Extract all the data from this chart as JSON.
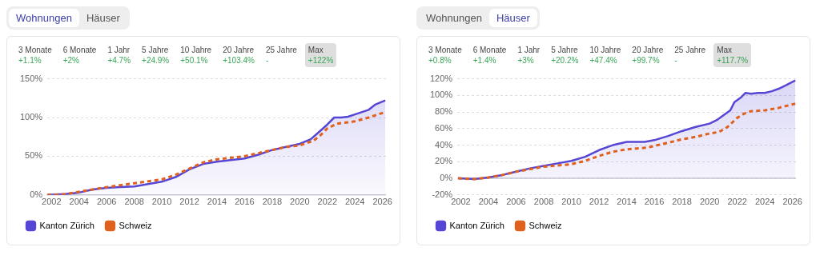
{
  "chart_data": [
    {
      "type": "line",
      "annotations": [
        "Wohnungen",
        "Häuser",
        "3 Monate",
        "+1.1%",
        "6 Monate",
        "+2%",
        "1 Jahr",
        "+4.7%",
        "5 Jahre",
        "+24.9%",
        "10 Jahre",
        "+50.1%",
        "20 Jahre",
        "+103.4%",
        "25 Jahre",
        "-",
        "Max",
        "+122%"
      ],
      "xlim": [
        2001.7,
        2026.25
      ],
      "xticks": [
        2002,
        2004,
        2006,
        2008,
        2010,
        2012,
        2014,
        2016,
        2018,
        2020,
        2022,
        2024,
        2026
      ],
      "ylim": [
        0,
        150
      ],
      "yticks": [
        {
          "value": 0,
          "label": "0%"
        },
        {
          "value": 50,
          "label": "50%"
        },
        {
          "value": 100,
          "label": "100%"
        },
        {
          "value": 150,
          "label": "150%"
        }
      ],
      "grid": "y",
      "legend": "bottom left",
      "marker": "none",
      "series": [
        {
          "name": "Kanton Zürich",
          "type": "area",
          "color": "#5546d6",
          "line_style": "solid",
          "x": [
            2001.7,
            2003,
            2004,
            2005,
            2006,
            2007,
            2008,
            2009,
            2010,
            2011,
            2012,
            2013,
            2014,
            2015,
            2016,
            2017,
            2018,
            2019,
            2020,
            2020.8,
            2021.5,
            2022,
            2022.5,
            2023,
            2023.5,
            2024,
            2025,
            2025.5,
            2026.2
          ],
          "values": [
            0,
            1,
            3,
            7,
            9,
            10,
            11,
            14,
            17,
            23,
            33,
            40,
            43,
            45,
            47,
            52,
            58,
            62,
            66,
            72,
            83,
            91,
            100,
            100,
            101,
            104,
            110,
            117,
            122
          ]
        },
        {
          "name": "Schweiz",
          "type": "line",
          "color": "#e0601e",
          "line_style": "dashed",
          "x": [
            2001.7,
            2003,
            2004,
            2006,
            2008,
            2010,
            2011,
            2012,
            2013,
            2014,
            2016,
            2018,
            2019,
            2020,
            2021,
            2021.5,
            2022,
            2022.7,
            2024,
            2025,
            2026.2
          ],
          "values": [
            0,
            1,
            4,
            10,
            15,
            20,
            26,
            34,
            42,
            46,
            50,
            58,
            62,
            64,
            70,
            77,
            86,
            92,
            95,
            100,
            107
          ]
        }
      ]
    },
    {
      "type": "line",
      "annotations": [
        "Wohnungen",
        "Häuser",
        "3 Monate",
        "+0.8%",
        "6 Monate",
        "+1.4%",
        "1 Jahr",
        "+3%",
        "5 Jahre",
        "+20.2%",
        "10 Jahre",
        "+47.4%",
        "20 Jahre",
        "+99.7%",
        "25 Jahre",
        "-",
        "Max",
        "+117.7%"
      ],
      "xlim": [
        2001.75,
        2026.25
      ],
      "xticks": [
        2002,
        2004,
        2006,
        2008,
        2010,
        2012,
        2014,
        2016,
        2018,
        2020,
        2022,
        2024,
        2026
      ],
      "ylim": [
        -20,
        120
      ],
      "yticks": [
        {
          "value": -20,
          "label": "-20%"
        },
        {
          "value": 0,
          "label": "0%"
        },
        {
          "value": 20,
          "label": "20%"
        },
        {
          "value": 40,
          "label": "40%"
        },
        {
          "value": 60,
          "label": "60%"
        },
        {
          "value": 80,
          "label": "80%"
        },
        {
          "value": 100,
          "label": "100%"
        },
        {
          "value": 120,
          "label": "120%"
        }
      ],
      "grid": "y",
      "legend": "bottom left",
      "marker": "none",
      "ref_lines": [
        {
          "axis": "y",
          "value": 0,
          "color": "#c8c8d2"
        }
      ],
      "series": [
        {
          "name": "Kanton Zürich",
          "type": "area",
          "color": "#5546d6",
          "line_style": "solid",
          "x": [
            2001.8,
            2003,
            2004,
            2005,
            2006,
            2007,
            2008,
            2009,
            2010,
            2011,
            2012,
            2013,
            2014,
            2015.3,
            2016,
            2017,
            2018,
            2019,
            2020,
            2020.5,
            2021,
            2021.5,
            2021.8,
            2022.3,
            2022.6,
            2023,
            2023.5,
            2024,
            2024.5,
            2025,
            2025.5,
            2026.2
          ],
          "values": [
            0,
            -1,
            1,
            4,
            8,
            12,
            15,
            18,
            21,
            26,
            34,
            40,
            44,
            44,
            46,
            51,
            57,
            62,
            66,
            70,
            76,
            82,
            92,
            98,
            103,
            102,
            103,
            103,
            105,
            108,
            112,
            118
          ]
        },
        {
          "name": "Schweiz",
          "type": "line",
          "color": "#e0601e",
          "line_style": "dashed",
          "x": [
            2001.8,
            2003,
            2004,
            2005,
            2006,
            2008,
            2010,
            2011,
            2012,
            2013,
            2014,
            2015.5,
            2016,
            2017,
            2018,
            2019,
            2020,
            2020.7,
            2021.3,
            2022,
            2022.5,
            2023,
            2024,
            2025,
            2026.2
          ],
          "values": [
            0,
            -1,
            1,
            4,
            8,
            14,
            17,
            21,
            27,
            32,
            35,
            37,
            39,
            43,
            47,
            50,
            54,
            56,
            62,
            73,
            78,
            81,
            82,
            85,
            90
          ]
        }
      ]
    }
  ]
}
